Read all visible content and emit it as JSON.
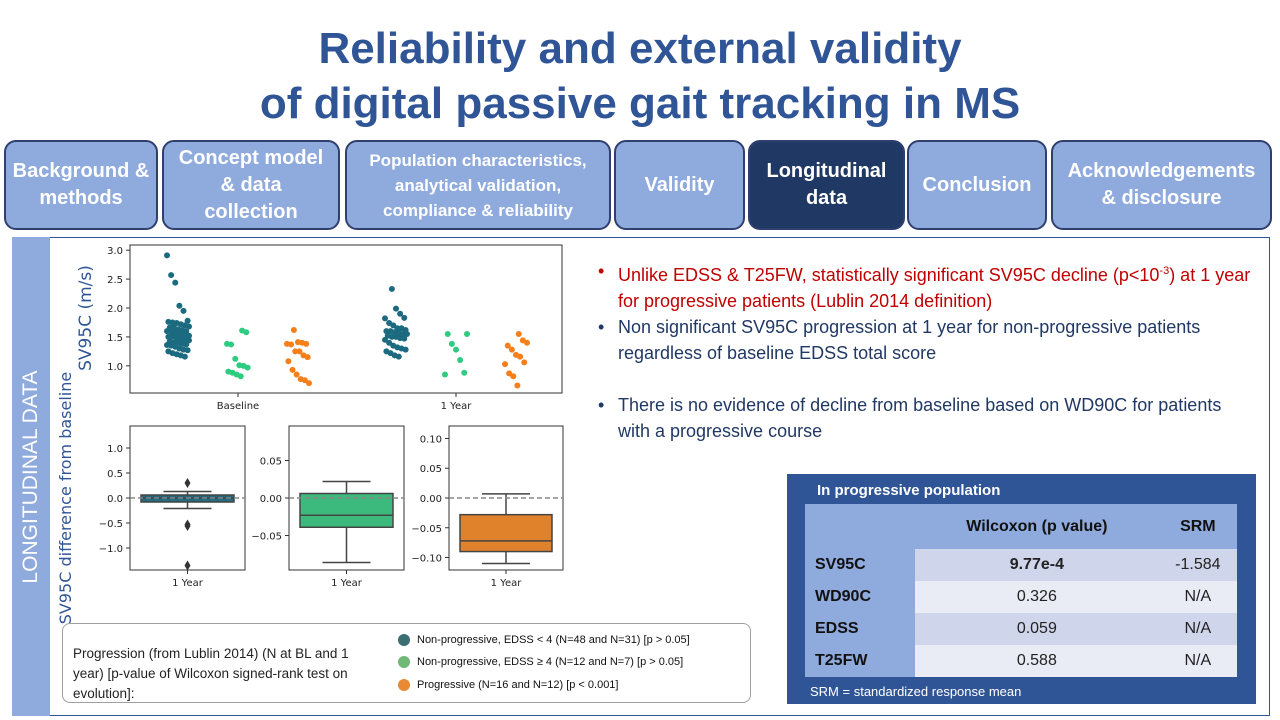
{
  "title": {
    "line1": "Reliability and external validity",
    "line2": "of digital passive gait tracking in MS"
  },
  "tabs": [
    {
      "label": "Background & methods",
      "active": false
    },
    {
      "label": "Concept model & data collection",
      "active": false
    },
    {
      "label": "Population characteristics, analytical validation, compliance & reliability",
      "active": false
    },
    {
      "label": "Validity",
      "active": false
    },
    {
      "label": "Longitudinal data",
      "active": true
    },
    {
      "label": "Conclusion",
      "active": false
    },
    {
      "label": "Acknowledgements & disclosure",
      "active": false
    }
  ],
  "section_label": "LONGITUDINAL DATA",
  "colors": {
    "nonprog_low": "#1b6a80",
    "nonprog_high": "#2ecc80",
    "progressive": "#f77f1a",
    "accent": "#2f5597",
    "tab": "#8faadc",
    "tab_active": "#203864"
  },
  "chart_data": [
    {
      "type": "scatter",
      "ylabel": "SV95C (m/s)",
      "categories": [
        "Baseline",
        "1 Year"
      ],
      "ylim": [
        0.53,
        3.09
      ],
      "yticks": [
        "1.0",
        "1.5",
        "2.0",
        "2.5",
        "3.0"
      ],
      "series": [
        {
          "group": "Non-progressive, EDSS < 4",
          "color": "#1b6a80",
          "values": [
            [
              2.91,
              2.57,
              2.44,
              2.04,
              1.95,
              1.78,
              1.76,
              1.75,
              1.74,
              1.72,
              1.7,
              1.68,
              1.66,
              1.65,
              1.63,
              1.62,
              1.6,
              1.6,
              1.58,
              1.57,
              1.55,
              1.54,
              1.52,
              1.5,
              1.5,
              1.48,
              1.46,
              1.45,
              1.44,
              1.42,
              1.4,
              1.4,
              1.38,
              1.37,
              1.36,
              1.35,
              1.33,
              1.3,
              1.28,
              1.27,
              1.25,
              1.22,
              1.2,
              1.18,
              1.16,
              1.52,
              1.62,
              1.7
            ],
            [
              2.33,
              1.99,
              1.9,
              1.83,
              1.82,
              1.74,
              1.7,
              1.65,
              1.65,
              1.62,
              1.6,
              1.6,
              1.58,
              1.57,
              1.55,
              1.55,
              1.52,
              1.5,
              1.5,
              1.48,
              1.47,
              1.45,
              1.4,
              1.35,
              1.32,
              1.3,
              1.28,
              1.25,
              1.22,
              1.18,
              1.16
            ]
          ]
        },
        {
          "group": "Non-progressive, EDSS ≥ 4",
          "color": "#2ecc80",
          "values": [
            [
              1.61,
              1.58,
              1.38,
              1.37,
              1.12,
              1.01,
              1.0,
              0.97,
              0.9,
              0.88,
              0.85,
              0.82
            ],
            [
              1.55,
              1.55,
              1.38,
              1.28,
              1.1,
              0.88,
              0.85
            ]
          ]
        },
        {
          "group": "Progressive",
          "color": "#f77f1a",
          "values": [
            [
              1.62,
              1.41,
              1.4,
              1.38,
              1.38,
              1.37,
              1.25,
              1.25,
              1.18,
              1.15,
              1.08,
              0.93,
              0.85,
              0.77,
              0.75,
              0.7
            ],
            [
              1.55,
              1.44,
              1.4,
              1.35,
              1.28,
              1.19,
              1.16,
              1.06,
              1.03,
              0.87,
              0.82,
              0.66
            ]
          ]
        }
      ]
    },
    {
      "type": "box",
      "ylabel": "SV95C difference from baseline",
      "panels": [
        {
          "category": "1 Year",
          "color": "#1f6b82",
          "ylim": [
            -1.44,
            1.44
          ],
          "yticks": [
            "-1.0",
            "-0.5",
            "0.0",
            "0.5",
            "1.0"
          ],
          "ytick_values": [
            -1,
            -0.5,
            0,
            0.5,
            1
          ],
          "q1": -0.08,
          "median": 0.0,
          "q3": 0.06,
          "whisker_low": -0.21,
          "whisker_high": 0.13,
          "outliers": [
            0.3,
            -0.53,
            -0.56,
            -1.35
          ]
        },
        {
          "category": "1 Year",
          "color": "#3cba7e",
          "ylim": [
            -0.096,
            0.096
          ],
          "yticks": [
            "-0.05",
            "0.00",
            "0.05"
          ],
          "ytick_values": [
            -0.05,
            0,
            0.05
          ],
          "q1": -0.039,
          "median": -0.023,
          "q3": 0.006,
          "whisker_low": -0.086,
          "whisker_high": 0.022,
          "outliers": []
        },
        {
          "category": "1 Year",
          "color": "#e0812b",
          "ylim": [
            -0.121,
            0.121
          ],
          "yticks": [
            "-0.10",
            "-0.05",
            "0.00",
            "0.05",
            "0.10"
          ],
          "ytick_values": [
            -0.1,
            -0.05,
            0,
            0.05,
            0.1
          ],
          "q1": -0.09,
          "median": -0.072,
          "q3": -0.028,
          "whisker_low": -0.11,
          "whisker_high": 0.007,
          "outliers": []
        }
      ]
    }
  ],
  "bullets": [
    {
      "pre": "Unlike EDSS & T25FW, statistically significant SV95C decline (p<10",
      "sup": "-3",
      "post": ") at 1 year for progressive  patients (Lublin 2014 definition)"
    },
    {
      "text": "Non significant SV95C progression  at 1 year for non-progressive  patients regardless  of baseline EDSS total score"
    },
    {
      "text": "There is no evidence of decline from baseline based on WD90C for patients with a progressive  course"
    }
  ],
  "legend": {
    "description": "Progression (from Lublin 2014) (N at BL and 1 year) [p-value of Wilcoxon signed-rank test on evolution]:",
    "items": [
      {
        "label": "Non-progressive,  EDSS < 4 (N=48 and N=31) [p > 0.05]",
        "color": "#3a6e73"
      },
      {
        "label": "Non-progressive,  EDSS ≥ 4 (N=12 and N=7) [p > 0.05]",
        "color": "#6fb876"
      },
      {
        "label": "Progressive (N=16 and  N=12) [p < 0.001]",
        "color": "#e88a33"
      }
    ]
  },
  "table": {
    "caption": "In progressive population",
    "headers": [
      "",
      "Wilcoxon (p value)",
      "SRM"
    ],
    "rows": [
      {
        "name": "SV95C",
        "p": "9.77e-4",
        "srm": "-1.584"
      },
      {
        "name": "WD90C",
        "p": "0.326",
        "srm": "N/A"
      },
      {
        "name": "EDSS",
        "p": "0.059",
        "srm": "N/A"
      },
      {
        "name": "T25FW",
        "p": "0.588",
        "srm": "N/A"
      }
    ],
    "footnote": "SRM = standardized response mean"
  }
}
